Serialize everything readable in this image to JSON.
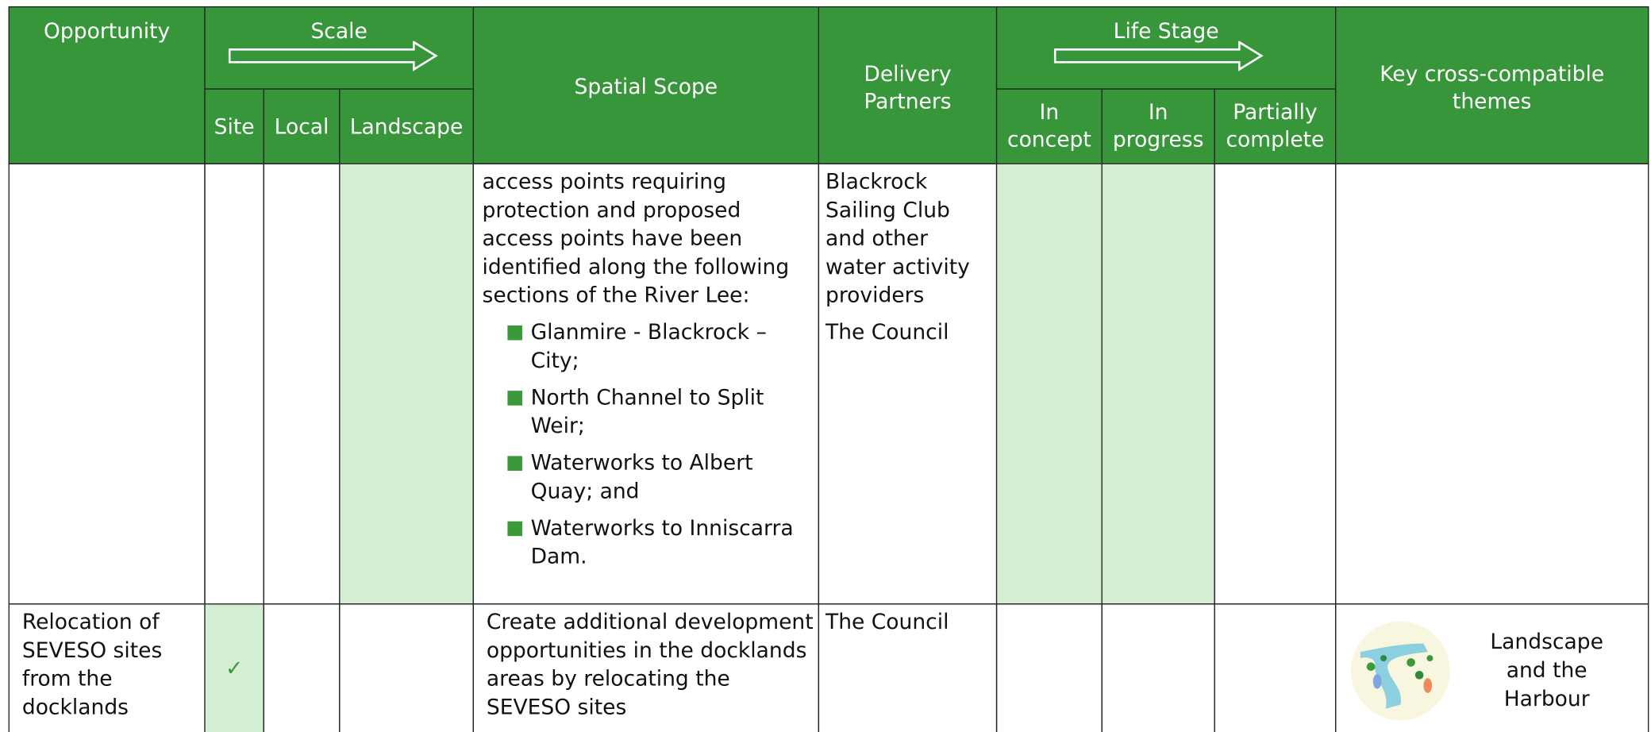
{
  "header": {
    "opportunity": "Opportunity",
    "scale": {
      "title": "Scale",
      "columns": [
        "Site",
        "Local",
        "Landscape"
      ]
    },
    "spatial_scope": "Spatial Scope",
    "delivery_partners": "Delivery Partners",
    "life_stage": {
      "title": "Life Stage",
      "columns": [
        "In concept",
        "In progress",
        "Partially complete"
      ]
    },
    "key_themes": "Key cross-compatible themes"
  },
  "rows": [
    {
      "spatial_scope": {
        "text": "access points requiring protection and proposed access points have been identified along the following sections of the River Lee:",
        "bullets": [
          "Glanmire - Blackrock – City;",
          "North Channel to Split Weir;",
          "Waterworks to Albert Quay; and",
          "Waterworks to Inniscarra Dam."
        ]
      },
      "delivery_partners": [
        "Blackrock Sailing Club and other water activity providers",
        "The Council"
      ]
    },
    {
      "opportunity": "Relocation of SEVESO sites from the docklands",
      "site": "✓",
      "spatial_scope": {
        "text": "Create additional development opportunities in the docklands areas by relocating the SEVESO sites"
      },
      "delivery_partners": [
        "The Council"
      ],
      "theme": "Landscape and the Harbour"
    }
  ]
}
